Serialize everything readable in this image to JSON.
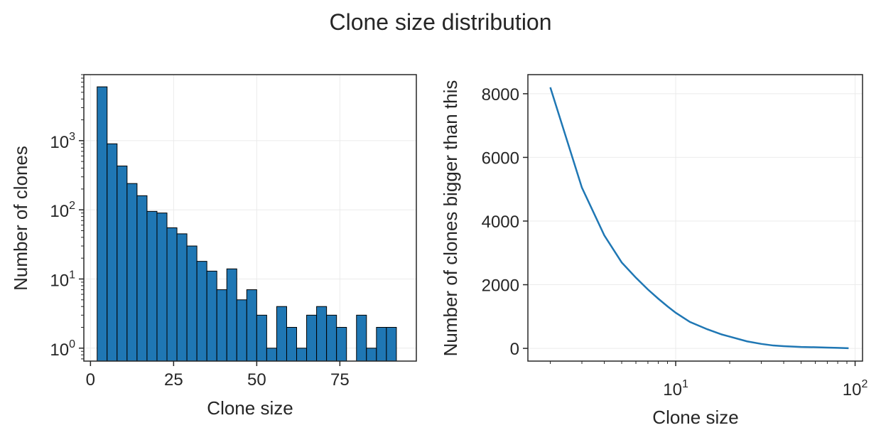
{
  "figure_title": "Clone size distribution",
  "chart_data": [
    {
      "type": "bar",
      "subtype": "histogram",
      "xlabel": "Clone size",
      "ylabel": "Number of clones",
      "yscale": "log",
      "xlim": [
        -2,
        98
      ],
      "ylim": [
        0.65,
        9000
      ],
      "xticks": [
        0,
        25,
        50,
        75
      ],
      "xtick_labels": [
        "0",
        "25",
        "50",
        "75"
      ],
      "yticks": [
        1,
        10,
        100,
        1000
      ],
      "ytick_labels": [
        {
          "base": "10",
          "exp": "0"
        },
        {
          "base": "10",
          "exp": "1"
        },
        {
          "base": "10",
          "exp": "2"
        },
        {
          "base": "10",
          "exp": "3"
        }
      ],
      "grid": true,
      "bar_color": "#1f77b4",
      "edge_color": "#000000",
      "bin_start": 2,
      "bin_width": 3,
      "values": [
        6000,
        900,
        430,
        240,
        160,
        95,
        90,
        55,
        45,
        30,
        18,
        13,
        7,
        14,
        5,
        7,
        3,
        1,
        4,
        2,
        1,
        3,
        4,
        3,
        2,
        0,
        3,
        1,
        2,
        2
      ]
    },
    {
      "type": "line",
      "xlabel": "Clone size",
      "ylabel": "Number of clones bigger than this",
      "xscale": "log",
      "xlim": [
        1.5,
        110
      ],
      "ylim": [
        -400,
        8600
      ],
      "xticks": [
        10,
        100
      ],
      "xtick_labels": [
        {
          "base": "10",
          "exp": "1"
        },
        {
          "base": "10",
          "exp": "2"
        }
      ],
      "yticks": [
        0,
        2000,
        4000,
        6000,
        8000
      ],
      "ytick_labels": [
        "0",
        "2000",
        "4000",
        "6000",
        "8000"
      ],
      "grid": true,
      "line_color": "#1f77b4",
      "x": [
        2,
        3,
        4,
        5,
        6,
        7,
        8,
        9,
        10,
        12,
        15,
        18,
        20,
        25,
        30,
        35,
        40,
        50,
        60,
        70,
        80,
        92
      ],
      "y": [
        8200,
        5050,
        3550,
        2700,
        2220,
        1850,
        1560,
        1320,
        1120,
        830,
        600,
        440,
        370,
        220,
        140,
        90,
        70,
        45,
        35,
        25,
        15,
        5
      ]
    }
  ]
}
